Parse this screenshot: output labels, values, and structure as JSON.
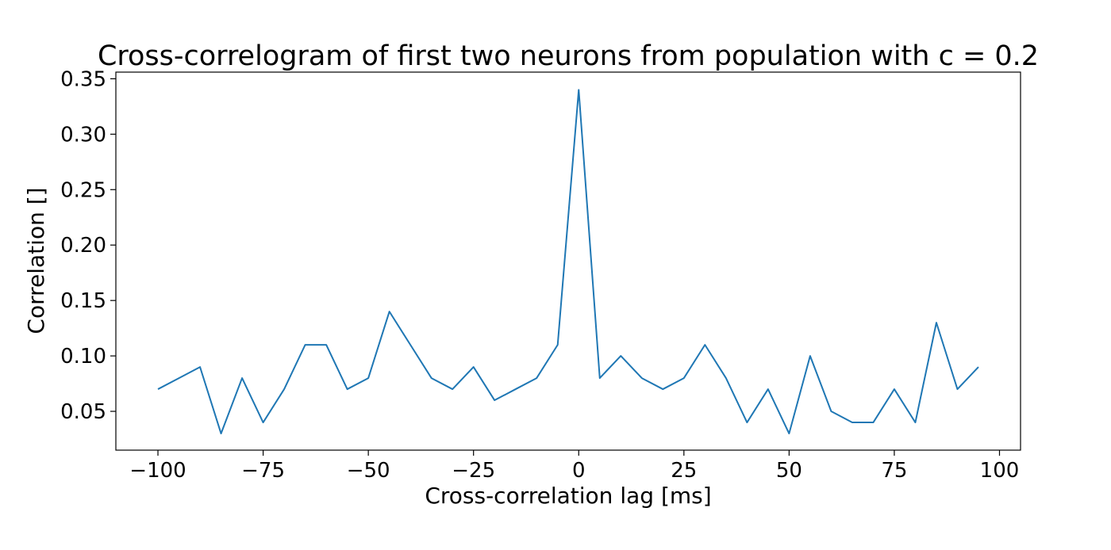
{
  "chart_data": {
    "type": "line",
    "title": "Cross-correlogram of first two neurons from population with c = 0.2",
    "xlabel": "Cross-correlation lag [ms]",
    "ylabel": "Correlation []",
    "xlim": [
      -110,
      105
    ],
    "ylim": [
      0.015,
      0.356
    ],
    "xticks": [
      -100,
      -75,
      -50,
      -25,
      0,
      25,
      50,
      75,
      100
    ],
    "xtick_labels": [
      "−100",
      "−75",
      "−50",
      "−25",
      "0",
      "25",
      "50",
      "75",
      "100"
    ],
    "yticks": [
      0.05,
      0.1,
      0.15,
      0.2,
      0.25,
      0.3,
      0.35
    ],
    "ytick_labels": [
      "0.05",
      "0.10",
      "0.15",
      "0.20",
      "0.25",
      "0.30",
      "0.35"
    ],
    "grid": false,
    "series": [
      {
        "color": "#1f77b4",
        "x": [
          -100,
          -95,
          -90,
          -85,
          -80,
          -75,
          -70,
          -65,
          -60,
          -55,
          -50,
          -45,
          -40,
          -35,
          -30,
          -25,
          -20,
          -15,
          -10,
          -5,
          0,
          5,
          10,
          15,
          20,
          25,
          30,
          35,
          40,
          45,
          50,
          55,
          60,
          65,
          70,
          75,
          80,
          85,
          90,
          95
        ],
        "y": [
          0.07,
          0.08,
          0.09,
          0.03,
          0.08,
          0.04,
          0.07,
          0.11,
          0.11,
          0.07,
          0.08,
          0.14,
          0.11,
          0.08,
          0.07,
          0.09,
          0.06,
          0.07,
          0.08,
          0.11,
          0.34,
          0.08,
          0.1,
          0.08,
          0.07,
          0.08,
          0.11,
          0.08,
          0.04,
          0.07,
          0.03,
          0.1,
          0.05,
          0.04,
          0.04,
          0.07,
          0.04,
          0.13,
          0.07,
          0.09
        ]
      }
    ]
  }
}
